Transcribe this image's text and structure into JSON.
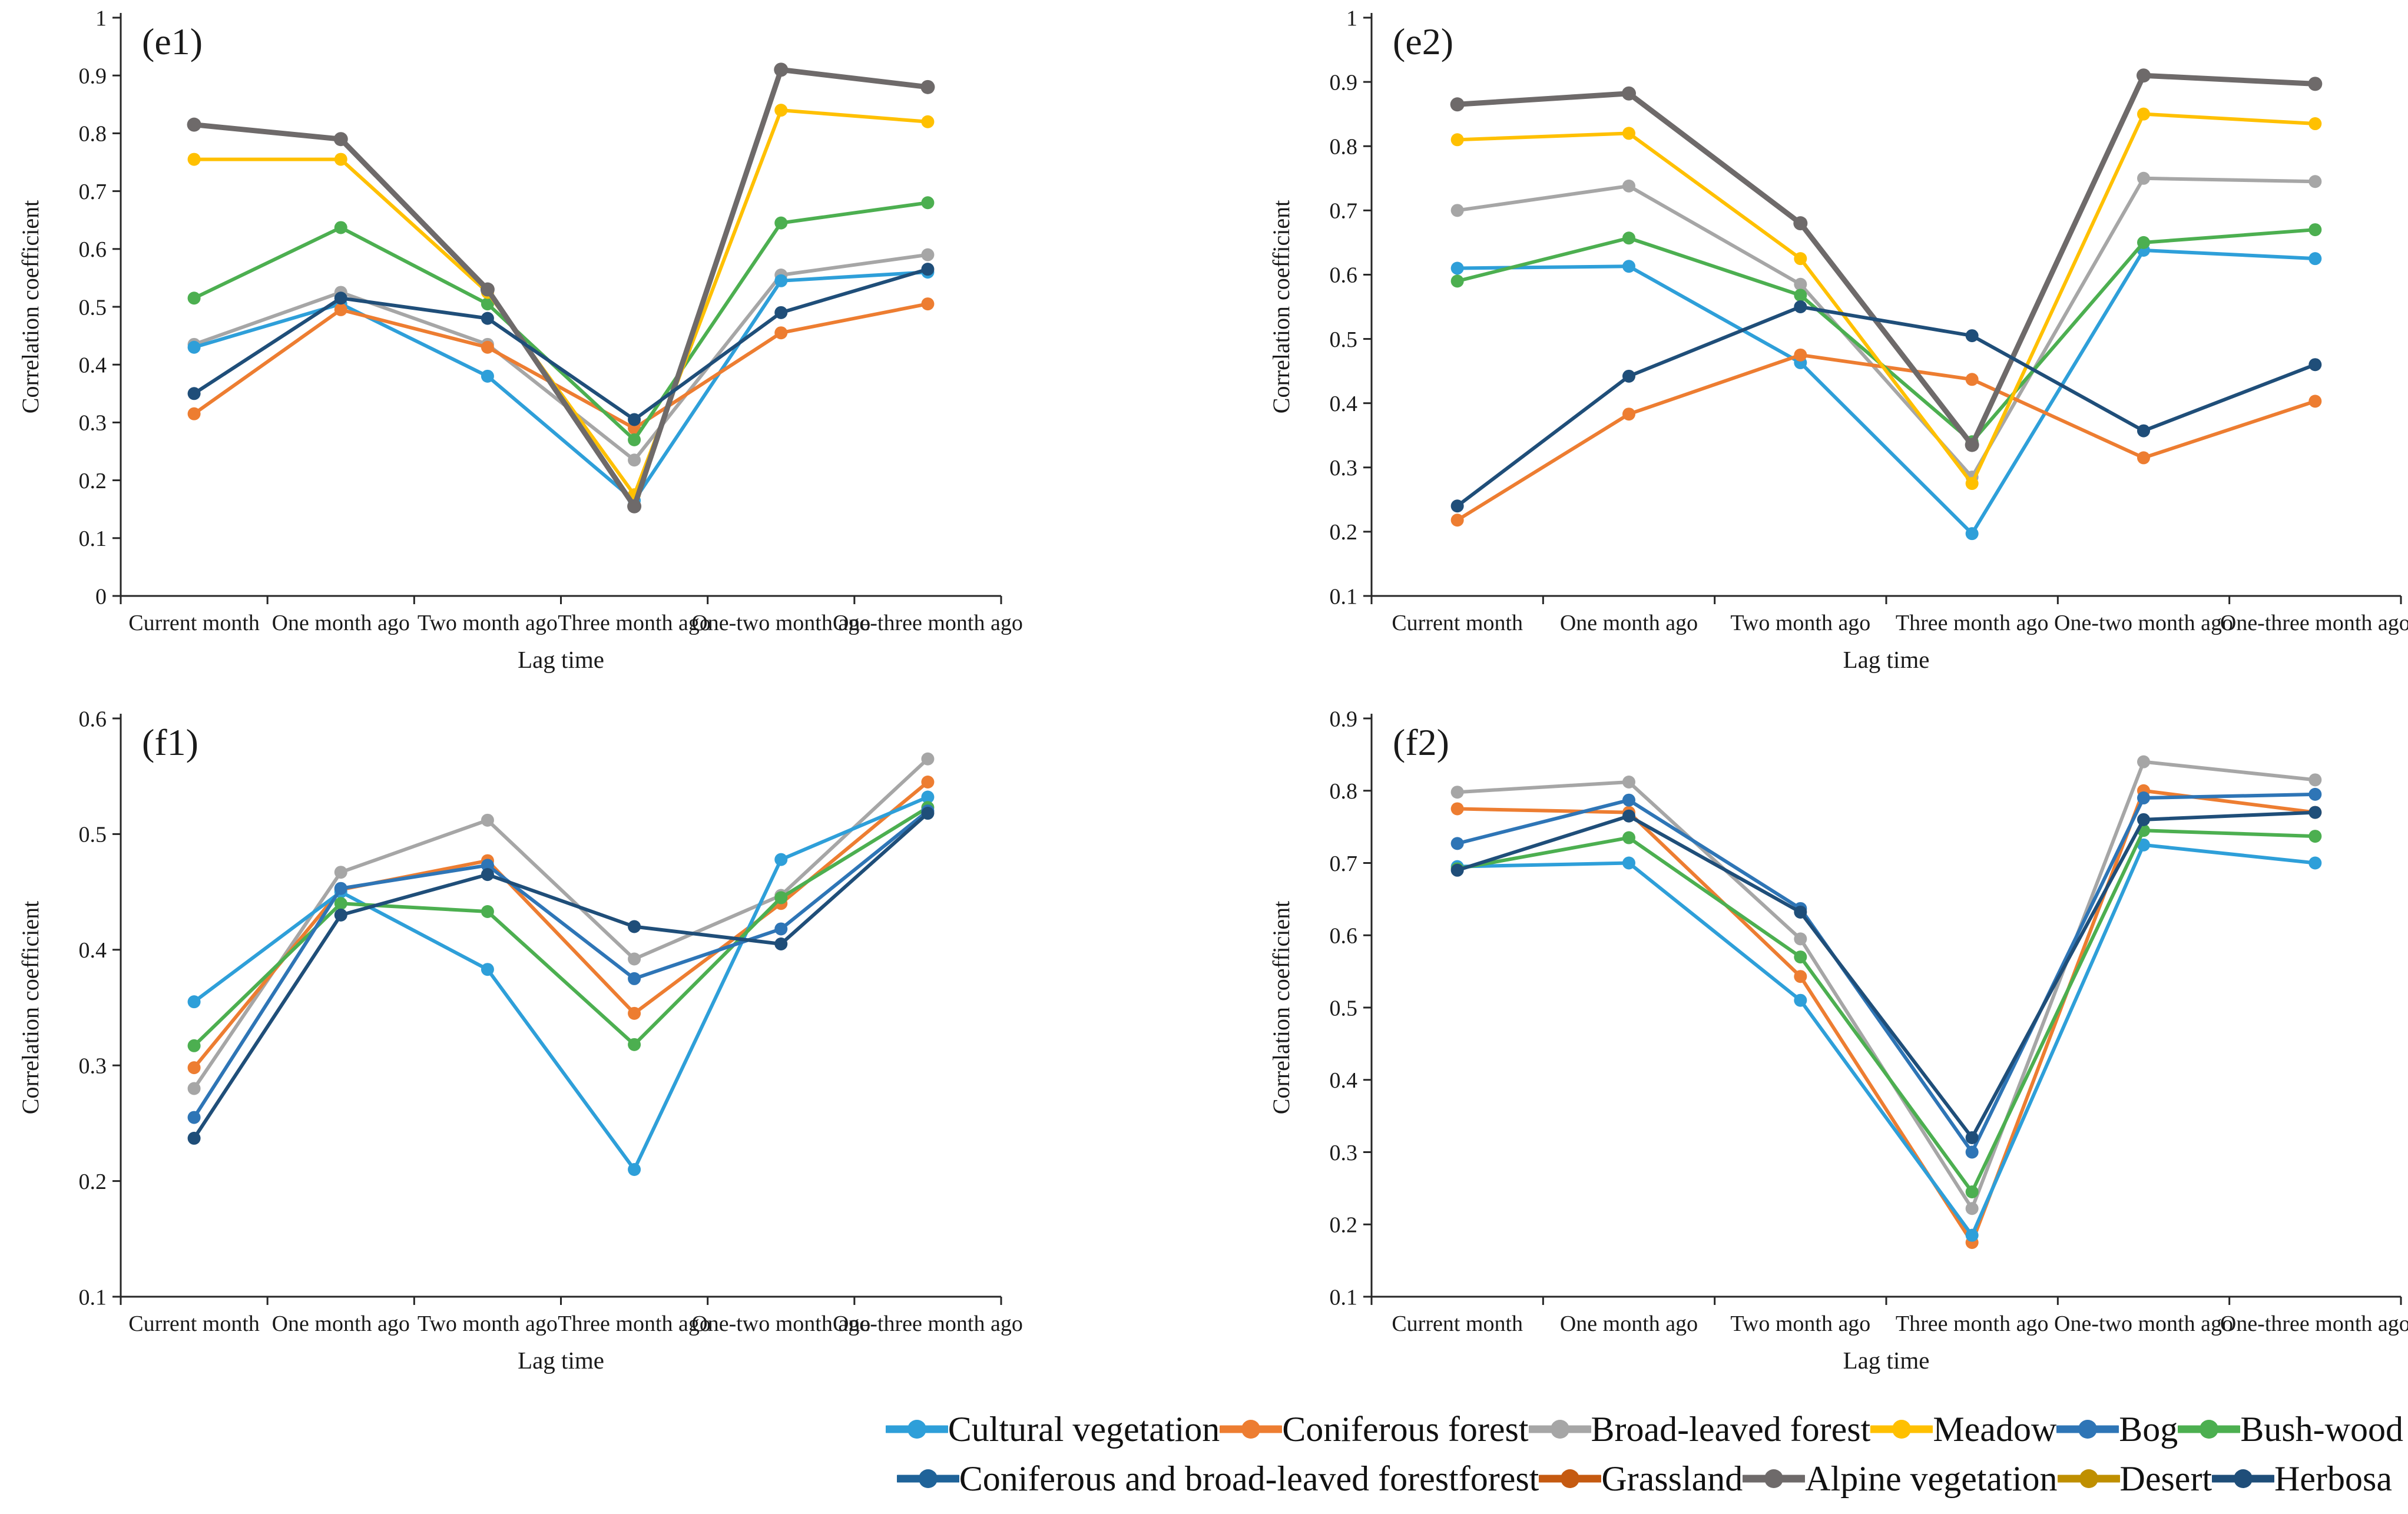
{
  "figure_title": "",
  "colors": {
    "cultural": "#2E9FD9",
    "coniferous": "#ED7D31",
    "broadleaved": "#A6A6A6",
    "meadow": "#FFC000",
    "bog": "#2E75B6",
    "bushwood": "#4CAF50",
    "conif_broad": "#1F6399",
    "grassland": "#C55A11",
    "alpine": "#6E6A6A",
    "desert": "#BF8F00",
    "herbosa": "#1F4E79"
  },
  "chart_data": {
    "type": "line",
    "categories": [
      "Current month",
      "One month ago",
      "Two month ago",
      "Three month ago",
      "One-two month ago",
      "One-three month ago"
    ],
    "xlabel": "Lag time",
    "ylabel": "Correlation coefficient",
    "grid": "off",
    "legend_position": "bottom",
    "panels": [
      {
        "id": "e1",
        "panel_label": "(e1)",
        "column": "left",
        "ylim": [
          0,
          1
        ],
        "ytick_step": 0.1,
        "series": [
          {
            "key": "broadleaved",
            "name": "Broad-leaved forest",
            "values": [
              0.435,
              0.525,
              0.435,
              0.235,
              0.555,
              0.59
            ]
          },
          {
            "key": "cultural",
            "name": "Cultural vegetation",
            "values": [
              0.43,
              0.505,
              0.38,
              0.165,
              0.545,
              0.56
            ]
          },
          {
            "key": "coniferous",
            "name": "Coniferous forest",
            "values": [
              0.315,
              0.495,
              0.43,
              0.29,
              0.455,
              0.505
            ]
          },
          {
            "key": "bushwood",
            "name": "Bush-wood",
            "values": [
              0.515,
              0.637,
              0.505,
              0.27,
              0.645,
              0.68
            ]
          },
          {
            "key": "meadow",
            "name": "Meadow",
            "values": [
              0.755,
              0.755,
              0.525,
              0.175,
              0.84,
              0.82
            ]
          },
          {
            "key": "alpine",
            "name": "Alpine vegetation",
            "values": [
              0.815,
              0.79,
              0.53,
              0.155,
              0.91,
              0.88
            ]
          },
          {
            "key": "herbosa",
            "name": "Herbosa",
            "values": [
              0.35,
              0.515,
              0.48,
              0.305,
              0.49,
              0.565
            ]
          }
        ]
      },
      {
        "id": "e2",
        "panel_label": "(e2)",
        "column": "right",
        "ylim": [
          0.1,
          1
        ],
        "ytick_step": 0.1,
        "series": [
          {
            "key": "broadleaved",
            "name": "Broad-leaved forest",
            "values": [
              0.7,
              0.738,
              0.585,
              0.285,
              0.75,
              0.745
            ]
          },
          {
            "key": "cultural",
            "name": "Cultural vegetation",
            "values": [
              0.61,
              0.613,
              0.463,
              0.197,
              0.638,
              0.625
            ]
          },
          {
            "key": "coniferous",
            "name": "Coniferous forest",
            "values": [
              0.218,
              0.383,
              0.475,
              0.437,
              0.315,
              0.403
            ]
          },
          {
            "key": "bushwood",
            "name": "Bush-wood",
            "values": [
              0.59,
              0.657,
              0.568,
              0.34,
              0.65,
              0.67
            ]
          },
          {
            "key": "meadow",
            "name": "Meadow",
            "values": [
              0.81,
              0.82,
              0.625,
              0.275,
              0.85,
              0.835
            ]
          },
          {
            "key": "alpine",
            "name": "Alpine vegetation",
            "values": [
              0.865,
              0.882,
              0.68,
              0.335,
              0.91,
              0.897
            ]
          },
          {
            "key": "herbosa",
            "name": "Herbosa",
            "values": [
              0.24,
              0.442,
              0.55,
              0.505,
              0.357,
              0.46
            ]
          }
        ]
      },
      {
        "id": "f1",
        "panel_label": "(f1)",
        "column": "left",
        "ylim": [
          0.1,
          0.6
        ],
        "ytick_step": 0.1,
        "series": [
          {
            "key": "broadleaved",
            "name": "Broad-leaved forest",
            "values": [
              0.28,
              0.467,
              0.512,
              0.392,
              0.447,
              0.565
            ]
          },
          {
            "key": "coniferous",
            "name": "Coniferous forest",
            "values": [
              0.298,
              0.452,
              0.477,
              0.345,
              0.44,
              0.545
            ]
          },
          {
            "key": "cultural",
            "name": "Cultural vegetation",
            "values": [
              0.355,
              0.45,
              0.383,
              0.21,
              0.478,
              0.532
            ]
          },
          {
            "key": "bushwood",
            "name": "Bush-wood",
            "values": [
              0.317,
              0.44,
              0.433,
              0.318,
              0.445,
              0.523
            ]
          },
          {
            "key": "bog",
            "name": "Bog",
            "values": [
              0.255,
              0.453,
              0.473,
              0.375,
              0.418,
              0.52
            ]
          },
          {
            "key": "herbosa",
            "name": "Herbosa",
            "values": [
              0.237,
              0.43,
              0.465,
              0.42,
              0.405,
              0.518
            ]
          }
        ]
      },
      {
        "id": "f2",
        "panel_label": "(f2)",
        "column": "right",
        "ylim": [
          0.1,
          0.9
        ],
        "ytick_step": 0.1,
        "series": [
          {
            "key": "broadleaved",
            "name": "Broad-leaved forest",
            "values": [
              0.798,
              0.812,
              0.595,
              0.222,
              0.84,
              0.815
            ]
          },
          {
            "key": "coniferous",
            "name": "Coniferous forest",
            "values": [
              0.775,
              0.77,
              0.543,
              0.175,
              0.8,
              0.77
            ]
          },
          {
            "key": "cultural",
            "name": "Cultural vegetation",
            "values": [
              0.695,
              0.7,
              0.51,
              0.185,
              0.725,
              0.7
            ]
          },
          {
            "key": "bushwood",
            "name": "Bush-wood",
            "values": [
              0.692,
              0.735,
              0.57,
              0.245,
              0.745,
              0.737
            ]
          },
          {
            "key": "bog",
            "name": "Bog",
            "values": [
              0.727,
              0.787,
              0.637,
              0.3,
              0.79,
              0.795
            ]
          },
          {
            "key": "herbosa",
            "name": "Herbosa",
            "values": [
              0.69,
              0.765,
              0.632,
              0.32,
              0.76,
              0.77
            ]
          }
        ]
      }
    ]
  },
  "legend": {
    "rows": [
      [
        {
          "key": "cultural",
          "label": "Cultural vegetation"
        },
        {
          "key": "coniferous",
          "label": "Coniferous forest"
        },
        {
          "key": "broadleaved",
          "label": "Broad-leaved forest"
        },
        {
          "key": "meadow",
          "label": "Meadow"
        },
        {
          "key": "bog",
          "label": "Bog"
        },
        {
          "key": "bushwood",
          "label": "Bush-wood"
        }
      ],
      [
        {
          "key": "conif_broad",
          "label": "Coniferous and broad-leaved forestforest"
        },
        {
          "key": "grassland",
          "label": "Grassland"
        },
        {
          "key": "alpine",
          "label": "Alpine vegetation"
        },
        {
          "key": "desert",
          "label": "Desert"
        },
        {
          "key": "herbosa",
          "label": "Herbosa"
        }
      ]
    ]
  }
}
